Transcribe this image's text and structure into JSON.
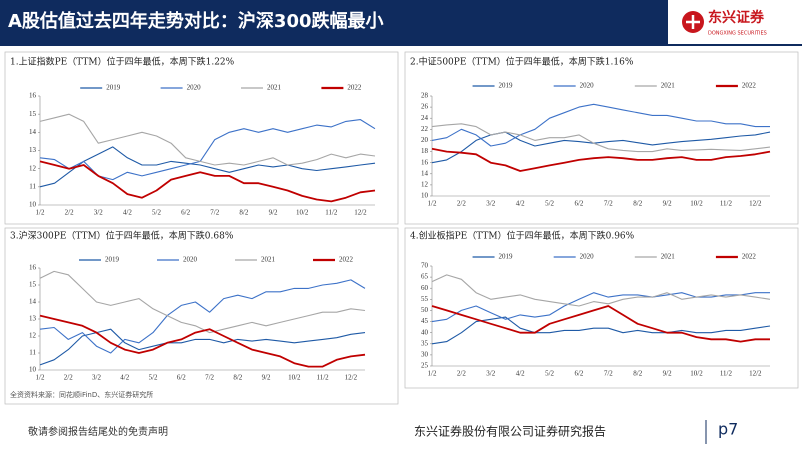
{
  "header": {
    "title": "A股估值过去四年走势对比：沪深300跌幅最小",
    "logo_name": "东兴证券",
    "logo_sub": "DONGXING SECURITIES"
  },
  "chart_data": [
    {
      "type": "line",
      "title": "1.上证指数PE（TTM）位于四年最低，本周下跌1.22%",
      "categories": [
        "1/2",
        null,
        "2/2",
        null,
        "3/2",
        null,
        "4/2",
        null,
        "5/2",
        null,
        "6/2",
        null,
        "7/2",
        null,
        "8/2",
        null,
        "9/2",
        null,
        "10/2",
        null,
        "11/2",
        null,
        "12/2",
        null
      ],
      "series": [
        {
          "name": "2019",
          "color": "#1f5aa6",
          "values": [
            11,
            11.2,
            11.8,
            12.4,
            12.8,
            13.2,
            12.6,
            12.2,
            12.2,
            12.4,
            12.3,
            12.2,
            12.0,
            11.8,
            12.0,
            12.2,
            12.1,
            12.2,
            12.0,
            11.9,
            12.0,
            12.1,
            12.2,
            12.3
          ]
        },
        {
          "name": "2020",
          "color": "#3d72c8",
          "values": [
            12.6,
            12.5,
            12.0,
            12.4,
            11.6,
            11.4,
            11.8,
            11.6,
            11.8,
            12.0,
            12.2,
            12.4,
            13.6,
            14.0,
            14.2,
            14.0,
            14.2,
            14.0,
            14.2,
            14.4,
            14.3,
            14.6,
            14.7,
            14.2
          ]
        },
        {
          "name": "2021",
          "color": "#a6a6a6",
          "values": [
            14.6,
            14.8,
            15.0,
            14.6,
            13.4,
            13.6,
            13.8,
            14.0,
            13.8,
            13.4,
            12.6,
            12.4,
            12.2,
            12.3,
            12.2,
            12.4,
            12.6,
            12.2,
            12.3,
            12.5,
            12.8,
            12.6,
            12.8,
            12.7
          ]
        },
        {
          "name": "2022",
          "color": "#c00000",
          "values": [
            12.4,
            12.2,
            12.0,
            12.2,
            11.6,
            11.2,
            10.6,
            10.4,
            10.8,
            11.4,
            11.6,
            11.8,
            11.6,
            11.6,
            11.2,
            11.2,
            11.0,
            10.8,
            10.5,
            10.3,
            10.2,
            10.4,
            10.7,
            10.8
          ]
        }
      ],
      "ylim": [
        10,
        16
      ],
      "yticks": [
        10,
        11,
        12,
        13,
        14,
        15,
        16
      ],
      "legend": "top"
    },
    {
      "type": "line",
      "title": "2.中证500PE（TTM）位于四年最低，本周下跌1.16%",
      "categories": [
        "1/2",
        null,
        "2/2",
        null,
        "3/2",
        null,
        "4/2",
        null,
        "5/2",
        null,
        "6/2",
        null,
        "7/2",
        null,
        "8/2",
        null,
        "9/2",
        null,
        "10/2",
        null,
        "11/2",
        null,
        "12/2",
        null
      ],
      "series": [
        {
          "name": "2019",
          "color": "#1f5aa6",
          "values": [
            16,
            16.5,
            18,
            20,
            21,
            21.5,
            20,
            19,
            19.5,
            20,
            19.8,
            19.5,
            19.8,
            20,
            19.6,
            19.2,
            19.5,
            19.8,
            20,
            20.2,
            20.5,
            20.8,
            21,
            21.5
          ]
        },
        {
          "name": "2020",
          "color": "#3d72c8",
          "values": [
            20,
            20.5,
            22,
            21,
            19,
            19.5,
            21,
            22,
            24,
            25,
            26,
            26.5,
            26,
            25.5,
            25,
            24.5,
            24.5,
            24,
            23.5,
            23.5,
            23,
            23,
            22.5,
            22.5
          ]
        },
        {
          "name": "2021",
          "color": "#a6a6a6",
          "values": [
            22.5,
            22.8,
            23,
            22.5,
            21,
            21.5,
            21,
            20,
            20.5,
            20.5,
            21,
            19.5,
            18.5,
            18.2,
            18,
            18,
            18.5,
            18.2,
            18.3,
            18.4,
            18.3,
            18.2,
            18.5,
            18.8
          ]
        },
        {
          "name": "2022",
          "color": "#c00000",
          "values": [
            18.5,
            18,
            17.8,
            17.5,
            16,
            15.5,
            14.5,
            15,
            15.5,
            16,
            16.5,
            16.8,
            17,
            16.8,
            16.5,
            16.5,
            16.8,
            17,
            16.5,
            16.5,
            17,
            17.2,
            17.5,
            18
          ]
        }
      ],
      "ylim": [
        10,
        28
      ],
      "yticks": [
        10,
        12,
        14,
        16,
        18,
        20,
        22,
        24,
        26,
        28
      ],
      "legend": "top"
    },
    {
      "type": "line",
      "title": "3.沪深300PE（TTM）位于四年最低，本周下跌0.68%",
      "categories": [
        "1/2",
        null,
        "2/2",
        null,
        "3/2",
        null,
        "4/2",
        null,
        "5/2",
        null,
        "6/2",
        null,
        "7/2",
        null,
        "8/2",
        null,
        "9/2",
        null,
        "10/2",
        null,
        "11/2",
        null,
        "12/2",
        null
      ],
      "series": [
        {
          "name": "2019",
          "color": "#1f5aa6",
          "values": [
            10.3,
            10.6,
            11.2,
            12,
            12.2,
            12.4,
            11.6,
            11.2,
            11.4,
            11.6,
            11.6,
            11.8,
            11.8,
            11.6,
            11.8,
            11.7,
            11.8,
            11.7,
            11.6,
            11.7,
            11.8,
            11.9,
            12.1,
            12.2
          ]
        },
        {
          "name": "2020",
          "color": "#3d72c8",
          "values": [
            12.4,
            12.5,
            11.8,
            12.2,
            11.4,
            11.0,
            11.8,
            11.6,
            12.2,
            13.2,
            13.8,
            14.0,
            13.4,
            14.2,
            14.4,
            14.2,
            14.6,
            14.6,
            14.8,
            14.8,
            15.0,
            15.1,
            15.3,
            14.8
          ]
        },
        {
          "name": "2021",
          "color": "#a6a6a6",
          "values": [
            15.4,
            15.8,
            15.6,
            14.8,
            14.0,
            13.8,
            14.0,
            14.2,
            13.6,
            13.2,
            12.8,
            12.6,
            12.2,
            12.4,
            12.6,
            12.8,
            12.6,
            12.8,
            13.0,
            13.2,
            13.4,
            13.4,
            13.6,
            13.5
          ]
        },
        {
          "name": "2022",
          "color": "#c00000",
          "values": [
            13.2,
            13.0,
            12.8,
            12.6,
            12.2,
            11.6,
            11.2,
            11.0,
            11.2,
            11.6,
            11.8,
            12.2,
            12.4,
            12.0,
            11.6,
            11.2,
            11.0,
            10.8,
            10.4,
            10.2,
            10.2,
            10.6,
            10.8,
            10.9
          ]
        }
      ],
      "ylim": [
        10,
        16
      ],
      "yticks": [
        10,
        11,
        12,
        13,
        14,
        15,
        16
      ],
      "legend": "top"
    },
    {
      "type": "line",
      "title": "4.创业板指PE（TTM）位于四年最低，本周下跌0.96%",
      "categories": [
        "1/2",
        null,
        "2/2",
        null,
        "3/2",
        null,
        "4/2",
        null,
        "5/2",
        null,
        "6/2",
        null,
        "7/2",
        null,
        "8/2",
        null,
        "9/2",
        null,
        "10/2",
        null,
        "11/2",
        null,
        "12/2",
        null
      ],
      "series": [
        {
          "name": "2019",
          "color": "#1f5aa6",
          "values": [
            35,
            36,
            40,
            45,
            46,
            47,
            42,
            40,
            40,
            41,
            41,
            42,
            42,
            40,
            41,
            40,
            40,
            41,
            40,
            40,
            41,
            41,
            42,
            43
          ]
        },
        {
          "name": "2020",
          "color": "#3d72c8",
          "values": [
            45,
            46,
            50,
            52,
            49,
            46,
            48,
            47,
            48,
            52,
            55,
            58,
            56,
            57,
            57,
            56,
            57,
            58,
            56,
            56,
            57,
            57,
            58,
            58
          ]
        },
        {
          "name": "2021",
          "color": "#a6a6a6",
          "values": [
            63,
            66,
            64,
            58,
            55,
            56,
            57,
            55,
            54,
            53,
            52,
            54,
            53,
            55,
            56,
            56,
            58,
            55,
            56,
            57,
            56,
            57,
            56,
            55
          ]
        },
        {
          "name": "2022",
          "color": "#c00000",
          "values": [
            52,
            50,
            48,
            46,
            44,
            42,
            40,
            40,
            44,
            46,
            48,
            50,
            52,
            48,
            44,
            42,
            40,
            40,
            38,
            37,
            37,
            36,
            37,
            37
          ]
        }
      ],
      "ylim": [
        25,
        70
      ],
      "yticks": [
        25,
        30,
        35,
        40,
        45,
        50,
        55,
        60,
        65,
        70
      ],
      "legend": "top"
    }
  ],
  "source": "全资资料来源：同花顺iFinD、东兴证券研究所",
  "footer": {
    "disclaimer": "敬请参阅报告结尾处的免责声明",
    "company": "东兴证券股份有限公司证券研究报告",
    "page": "p7"
  }
}
